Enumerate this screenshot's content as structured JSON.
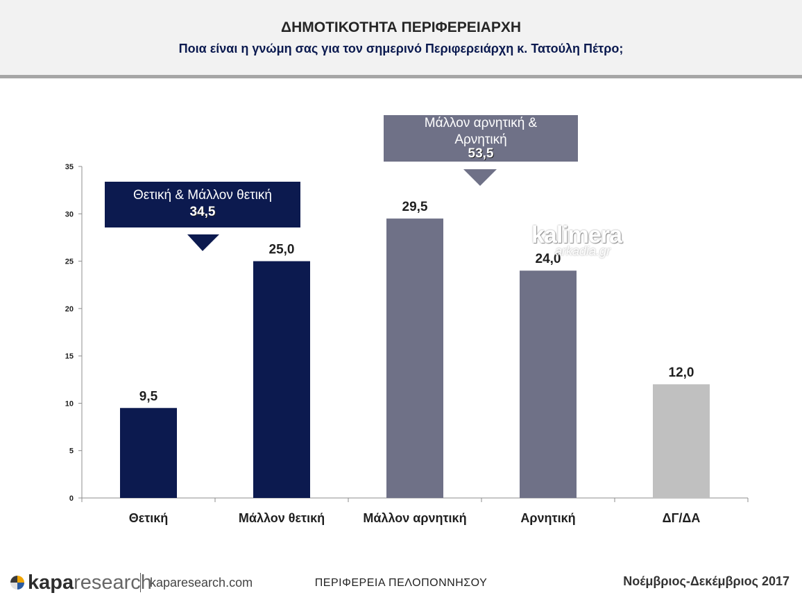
{
  "header": {
    "title": "ΔΗΜΟΤΙΚΟΤΗΤΑ ΠΕΡΙΦΕΡΕΙΑΡΧΗ",
    "subtitle": "Ποια είναι η γνώμη σας για τον σημερινό Περιφερειάρχη κ. Τατούλη Πέτρο;"
  },
  "chart_data": {
    "type": "bar",
    "categories": [
      "Θετική",
      "Μάλλον θετική",
      "Μάλλον αρνητική",
      "Αρνητική",
      "ΔΓ/ΔΑ"
    ],
    "values": [
      9.5,
      25.0,
      29.5,
      24.0,
      12.0
    ],
    "value_labels": [
      "9,5",
      "25,0",
      "29,5",
      "24,0",
      "12,0"
    ],
    "colors": [
      "#0c1a4f",
      "#0c1a4f",
      "#6f7187",
      "#6f7187",
      "#c0c0c0"
    ],
    "ylim": [
      0,
      35
    ],
    "yticks": [
      0,
      5,
      10,
      15,
      20,
      25,
      30,
      35
    ],
    "grid": false
  },
  "callouts": {
    "positive": {
      "label": "Θετική & Μάλλον θετική",
      "value": "34,5",
      "color": "#0c1a4f"
    },
    "negative": {
      "label_line1": "Μάλλον αρνητική &",
      "label_line2": "Αρνητική",
      "value": "53,5",
      "color": "#6f7187"
    }
  },
  "watermark": {
    "line1": "kalimera",
    "line2": "arkadia.gr"
  },
  "footer": {
    "brand_a": "kapa",
    "brand_b": "research",
    "url": "kaparesearch.com",
    "region": "ΠΕΡΙΦΕΡΕΙΑ ΠΕΛΟΠΟΝΝΗΣΟΥ",
    "date": "Νοέμβριος-Δεκέμβριος 2017"
  }
}
